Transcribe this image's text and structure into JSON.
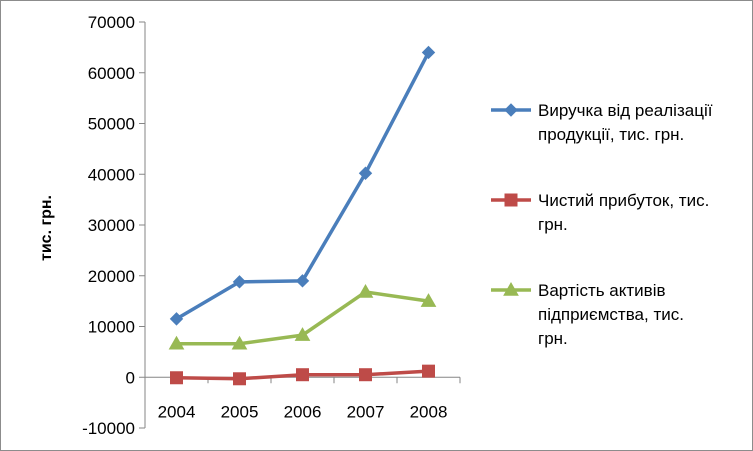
{
  "chart_data": {
    "type": "line",
    "categories": [
      "2004",
      "2005",
      "2006",
      "2007",
      "2008"
    ],
    "ylabel": "тис. грн.",
    "xlabel": "",
    "title": "",
    "ylim": [
      -10000,
      70000
    ],
    "yticks": [
      -10000,
      0,
      10000,
      20000,
      30000,
      40000,
      50000,
      60000,
      70000
    ],
    "grid": false,
    "legend_position": "right",
    "series": [
      {
        "name": "Виручка від реалізації продукції, тис. грн.",
        "legend_lines": [
          "Виручка від реалізації",
          "продукції, тис. грн."
        ],
        "values": [
          11500,
          18800,
          19000,
          40200,
          64000
        ],
        "color": "#4A7EBB",
        "marker": "diamond"
      },
      {
        "name": "Чистий прибуток, тис. грн.",
        "legend_lines": [
          "Чистий прибуток, тис.",
          "грн."
        ],
        "values": [
          -100,
          -300,
          500,
          500,
          1200
        ],
        "color": "#BE4B48",
        "marker": "square"
      },
      {
        "name": "Вартість активів підприємства, тис. грн.",
        "legend_lines": [
          "Вартість активів",
          "підприємства, тис.",
          "грн."
        ],
        "values": [
          6600,
          6600,
          8300,
          16800,
          15000
        ],
        "color": "#98B954",
        "marker": "triangle"
      }
    ]
  }
}
